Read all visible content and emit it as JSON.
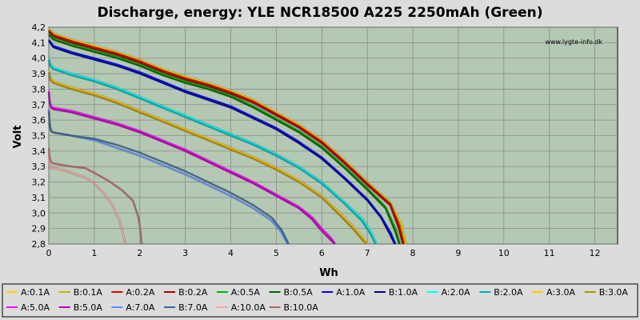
{
  "chart_data": {
    "type": "line",
    "title": "Discharge, energy: YLE NCR18500 A225 2250mAh (Green)",
    "xlabel": "Wh",
    "ylabel": "Volt",
    "watermark": "www.lygte-info.dk",
    "xlim": [
      0,
      12.5
    ],
    "ylim": [
      2.8,
      4.2
    ],
    "x_ticks": [
      0,
      1,
      2,
      3,
      4,
      5,
      6,
      7,
      8,
      9,
      10,
      11,
      12
    ],
    "y_ticks": [
      "2,8",
      "2,9",
      "3,0",
      "3,1",
      "3,2",
      "3,3",
      "3,4",
      "3,5",
      "3,6",
      "3,7",
      "3,8",
      "3,9",
      "4,0",
      "4,1",
      "4,2"
    ],
    "grid": true,
    "legend_position": "bottom",
    "colors": {
      "plot_bg": "#b4c8b4",
      "figure_bg": "#dcdcdc",
      "grid": "#8c8c8c"
    },
    "series": [
      {
        "name": "A:0.1A",
        "color": "#ffd000",
        "x": [
          0,
          0.1,
          0.5,
          1,
          1.5,
          2,
          2.5,
          3,
          3.5,
          4,
          4.5,
          5,
          5.5,
          6,
          6.5,
          7,
          7.5,
          7.75,
          7.85
        ],
        "y": [
          4.19,
          4.16,
          4.12,
          4.08,
          4.04,
          3.99,
          3.93,
          3.88,
          3.84,
          3.79,
          3.73,
          3.65,
          3.57,
          3.47,
          3.34,
          3.2,
          3.07,
          2.93,
          2.8
        ]
      },
      {
        "name": "B:0.1A",
        "color": "#c8b400",
        "x": [
          0,
          0.1,
          0.5,
          1,
          1.5,
          2,
          2.5,
          3,
          3.5,
          4,
          4.5,
          5,
          5.5,
          6,
          6.5,
          7,
          7.5,
          7.72,
          7.82
        ],
        "y": [
          4.18,
          4.15,
          4.11,
          4.07,
          4.03,
          3.98,
          3.92,
          3.87,
          3.83,
          3.78,
          3.72,
          3.64,
          3.56,
          3.46,
          3.33,
          3.19,
          3.06,
          2.92,
          2.8
        ]
      },
      {
        "name": "A:0.2A",
        "color": "#e60000",
        "x": [
          0,
          0.1,
          0.5,
          1,
          1.5,
          2,
          2.5,
          3,
          3.5,
          4,
          4.5,
          5,
          5.5,
          6,
          6.5,
          7,
          7.5,
          7.7,
          7.8
        ],
        "y": [
          4.18,
          4.15,
          4.11,
          4.07,
          4.03,
          3.98,
          3.92,
          3.87,
          3.83,
          3.78,
          3.72,
          3.64,
          3.56,
          3.46,
          3.33,
          3.19,
          3.06,
          2.92,
          2.8
        ]
      },
      {
        "name": "B:0.2A",
        "color": "#aa0000",
        "x": [
          0,
          0.1,
          0.5,
          1,
          1.5,
          2,
          2.5,
          3,
          3.5,
          4,
          4.5,
          5,
          5.5,
          6,
          6.5,
          7,
          7.5,
          7.68,
          7.78
        ],
        "y": [
          4.17,
          4.14,
          4.1,
          4.06,
          4.02,
          3.97,
          3.91,
          3.86,
          3.82,
          3.77,
          3.71,
          3.63,
          3.55,
          3.45,
          3.32,
          3.18,
          3.05,
          2.91,
          2.8
        ]
      },
      {
        "name": "A:0.5A",
        "color": "#00b400",
        "x": [
          0,
          0.1,
          0.5,
          1,
          1.5,
          2,
          2.5,
          3,
          3.5,
          4,
          4.5,
          5,
          5.5,
          6,
          6.5,
          7,
          7.4,
          7.62,
          7.72
        ],
        "y": [
          4.16,
          4.13,
          4.09,
          4.05,
          4.01,
          3.96,
          3.9,
          3.85,
          3.81,
          3.76,
          3.69,
          3.61,
          3.53,
          3.43,
          3.3,
          3.16,
          3.04,
          2.9,
          2.8
        ]
      },
      {
        "name": "B:0.5A",
        "color": "#006400",
        "x": [
          0,
          0.1,
          0.5,
          1,
          1.5,
          2,
          2.5,
          3,
          3.5,
          4,
          4.5,
          5,
          5.5,
          6,
          6.5,
          7,
          7.4,
          7.6,
          7.7
        ],
        "y": [
          4.15,
          4.12,
          4.08,
          4.04,
          4,
          3.95,
          3.89,
          3.84,
          3.8,
          3.75,
          3.68,
          3.6,
          3.52,
          3.42,
          3.29,
          3.15,
          3.03,
          2.89,
          2.8
        ]
      },
      {
        "name": "A:1.0A",
        "color": "#0000ff",
        "x": [
          0,
          0.1,
          0.5,
          1,
          1.5,
          2,
          2.5,
          3,
          3.5,
          4,
          4.5,
          5,
          5.45,
          5.5,
          6,
          6.5,
          7,
          7.3,
          7.52,
          7.62
        ],
        "y": [
          4.12,
          4.08,
          4.04,
          4,
          3.96,
          3.91,
          3.85,
          3.79,
          3.74,
          3.69,
          3.62,
          3.55,
          3.47,
          3.46,
          3.36,
          3.23,
          3.09,
          2.98,
          2.87,
          2.8
        ]
      },
      {
        "name": "B:1.0A",
        "color": "#000096",
        "x": [
          0,
          0.1,
          0.5,
          1,
          1.5,
          2,
          2.5,
          3,
          3.5,
          4,
          4.5,
          5,
          5.5,
          6,
          6.5,
          7,
          7.3,
          7.5,
          7.6
        ],
        "y": [
          4.11,
          4.07,
          4.03,
          3.99,
          3.95,
          3.9,
          3.84,
          3.78,
          3.73,
          3.68,
          3.61,
          3.54,
          3.45,
          3.35,
          3.22,
          3.08,
          2.97,
          2.86,
          2.8
        ]
      },
      {
        "name": "A:2.0A",
        "color": "#00ffff",
        "x": [
          0,
          0.03,
          0.1,
          0.5,
          1,
          1.5,
          2,
          2.5,
          3,
          3.5,
          4,
          4.5,
          5,
          5.5,
          6,
          6.5,
          6.9,
          7.1,
          7.2
        ],
        "y": [
          4.0,
          3.96,
          3.94,
          3.9,
          3.86,
          3.81,
          3.75,
          3.69,
          3.63,
          3.57,
          3.51,
          3.45,
          3.38,
          3.3,
          3.2,
          3.07,
          2.96,
          2.87,
          2.8
        ]
      },
      {
        "name": "B:2.0A",
        "color": "#00b4b4",
        "x": [
          0,
          0.03,
          0.1,
          0.5,
          1,
          1.5,
          2,
          2.5,
          3,
          3.5,
          4,
          4.5,
          5,
          5.5,
          6,
          6.5,
          6.88,
          7.08,
          7.18
        ],
        "y": [
          3.99,
          3.95,
          3.93,
          3.89,
          3.85,
          3.8,
          3.74,
          3.68,
          3.62,
          3.56,
          3.5,
          3.44,
          3.37,
          3.29,
          3.19,
          3.06,
          2.95,
          2.86,
          2.8
        ]
      },
      {
        "name": "A:3.0A",
        "color": "#ffc800",
        "x": [
          0,
          0.03,
          0.1,
          0.5,
          1,
          1.5,
          2,
          2.5,
          3,
          3.5,
          4,
          4.5,
          5,
          5.5,
          6,
          6.4,
          6.7,
          6.9,
          7.0
        ],
        "y": [
          3.92,
          3.87,
          3.85,
          3.81,
          3.77,
          3.72,
          3.66,
          3.6,
          3.54,
          3.48,
          3.42,
          3.36,
          3.29,
          3.21,
          3.11,
          3.0,
          2.91,
          2.84,
          2.8
        ]
      },
      {
        "name": "B:3.0A",
        "color": "#b48c00",
        "x": [
          0,
          0.03,
          0.1,
          0.5,
          1,
          1.5,
          2,
          2.5,
          3,
          3.5,
          4,
          4.5,
          5,
          5.5,
          6,
          6.38,
          6.68,
          6.88,
          6.98
        ],
        "y": [
          3.91,
          3.86,
          3.84,
          3.8,
          3.76,
          3.71,
          3.65,
          3.59,
          3.53,
          3.47,
          3.41,
          3.35,
          3.28,
          3.2,
          3.1,
          2.99,
          2.9,
          2.83,
          2.8
        ]
      },
      {
        "name": "A:5.0A",
        "color": "#ff00ff",
        "x": [
          0,
          0.02,
          0.05,
          0.1,
          0.5,
          1,
          1.5,
          2,
          2.5,
          3,
          3.5,
          4,
          4.5,
          5,
          5.5,
          5.8,
          6.0,
          6.2,
          6.3
        ],
        "y": [
          3.79,
          3.72,
          3.69,
          3.68,
          3.66,
          3.62,
          3.58,
          3.53,
          3.47,
          3.41,
          3.34,
          3.27,
          3.2,
          3.12,
          3.04,
          2.97,
          2.9,
          2.84,
          2.8
        ]
      },
      {
        "name": "B:5.0A",
        "color": "#b400b4",
        "x": [
          0,
          0.02,
          0.05,
          0.1,
          0.5,
          1,
          1.5,
          2,
          2.5,
          3,
          3.5,
          4,
          4.5,
          5,
          5.5,
          5.78,
          5.98,
          6.18,
          6.28
        ],
        "y": [
          3.78,
          3.71,
          3.68,
          3.67,
          3.65,
          3.61,
          3.57,
          3.52,
          3.46,
          3.4,
          3.33,
          3.26,
          3.19,
          3.11,
          3.03,
          2.96,
          2.89,
          2.83,
          2.8
        ]
      },
      {
        "name": "A:7.0A",
        "color": "#5a8cff",
        "x": [
          0,
          0.02,
          0.05,
          0.1,
          0.5,
          1,
          1.5,
          2,
          2.5,
          3,
          3.5,
          4,
          4.5,
          4.9,
          5.1,
          5.25
        ],
        "y": [
          3.67,
          3.58,
          3.53,
          3.52,
          3.5,
          3.47,
          3.42,
          3.37,
          3.31,
          3.25,
          3.18,
          3.11,
          3.03,
          2.95,
          2.88,
          2.8
        ]
      },
      {
        "name": "B:7.0A",
        "color": "#3c6496",
        "x": [
          0,
          0.02,
          0.05,
          0.1,
          0.5,
          1,
          1.5,
          2,
          2.5,
          3,
          3.5,
          4,
          4.5,
          4.9,
          5.12,
          5.27
        ],
        "y": [
          3.66,
          3.57,
          3.53,
          3.52,
          3.5,
          3.48,
          3.44,
          3.39,
          3.33,
          3.27,
          3.2,
          3.13,
          3.05,
          2.97,
          2.89,
          2.8
        ]
      },
      {
        "name": "A:10.0A",
        "color": "#ffa0a0",
        "x": [
          0,
          0.02,
          0.05,
          0.1,
          0.3,
          0.5,
          0.8,
          1.0,
          1.2,
          1.4,
          1.55,
          1.63,
          1.68
        ],
        "y": [
          3.37,
          3.3,
          3.29,
          3.29,
          3.28,
          3.26,
          3.23,
          3.19,
          3.13,
          3.05,
          2.95,
          2.87,
          2.8
        ]
      },
      {
        "name": "B:10.0A",
        "color": "#b46464",
        "x": [
          0,
          0.02,
          0.05,
          0.1,
          0.3,
          0.5,
          0.8,
          1.0,
          1.3,
          1.6,
          1.85,
          1.97,
          2.02,
          2.04
        ],
        "y": [
          3.42,
          3.36,
          3.33,
          3.32,
          3.31,
          3.3,
          3.29,
          3.26,
          3.21,
          3.15,
          3.08,
          2.97,
          2.87,
          2.8
        ]
      }
    ]
  }
}
